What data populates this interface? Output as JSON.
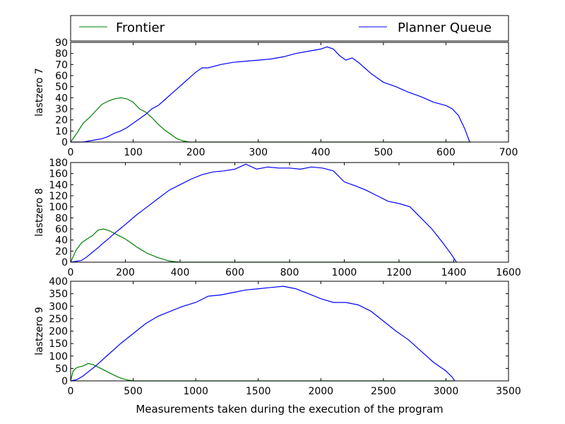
{
  "legend": {
    "items": [
      {
        "name": "Frontier",
        "color": "#008000"
      },
      {
        "name": "Planner Queue",
        "color": "#0000ff"
      }
    ],
    "placement": "top, above charts, spanning width"
  },
  "xlabel": "Measurements taken during the execution of the program",
  "chart_data": [
    {
      "type": "line",
      "ylabel": "lastzero 7",
      "xlim": [
        0,
        700
      ],
      "ylim": [
        0,
        90
      ],
      "xticks": [
        0,
        100,
        200,
        300,
        400,
        500,
        600,
        700
      ],
      "yticks": [
        0,
        10,
        20,
        30,
        40,
        50,
        60,
        70,
        80,
        90
      ],
      "grid": false,
      "series": [
        {
          "name": "Frontier",
          "color": "#008000",
          "x": [
            0,
            10,
            20,
            30,
            40,
            50,
            60,
            70,
            80,
            90,
            100,
            110,
            120,
            130,
            140,
            150,
            160,
            170,
            180,
            190,
            250,
            400,
            640
          ],
          "y": [
            0,
            8,
            17,
            22,
            28,
            34,
            37,
            39,
            40,
            39,
            36,
            30,
            27,
            22,
            16,
            11,
            7,
            3,
            1,
            0,
            0,
            0,
            0
          ]
        },
        {
          "name": "Planner Queue",
          "color": "#0000ff",
          "x": [
            0,
            10,
            20,
            30,
            40,
            50,
            60,
            70,
            80,
            90,
            100,
            110,
            120,
            130,
            140,
            150,
            160,
            170,
            180,
            190,
            200,
            210,
            220,
            240,
            260,
            280,
            300,
            320,
            340,
            360,
            380,
            400,
            410,
            420,
            430,
            440,
            450,
            460,
            470,
            480,
            490,
            500,
            520,
            540,
            560,
            580,
            600,
            610,
            620,
            630,
            638
          ],
          "y": [
            0,
            0,
            0,
            1,
            2,
            3,
            5,
            8,
            10,
            13,
            17,
            21,
            25,
            30,
            33,
            38,
            43,
            48,
            53,
            58,
            63,
            67,
            67,
            70,
            72,
            73,
            74,
            75,
            77,
            80,
            82,
            84,
            86,
            84,
            78,
            74,
            76,
            72,
            67,
            62,
            58,
            54,
            50,
            45,
            41,
            36,
            33,
            30,
            24,
            12,
            0
          ]
        }
      ]
    },
    {
      "type": "line",
      "ylabel": "lastzero 8",
      "xlim": [
        0,
        1600
      ],
      "ylim": [
        0,
        180
      ],
      "xticks": [
        0,
        200,
        400,
        600,
        800,
        1000,
        1200,
        1400,
        1600
      ],
      "yticks": [
        0,
        20,
        40,
        60,
        80,
        100,
        120,
        140,
        160,
        180
      ],
      "grid": false,
      "series": [
        {
          "name": "Frontier",
          "color": "#008000",
          "x": [
            0,
            20,
            40,
            60,
            80,
            100,
            120,
            140,
            160,
            180,
            200,
            220,
            240,
            260,
            280,
            300,
            320,
            340,
            360,
            400,
            600,
            1400
          ],
          "y": [
            0,
            22,
            35,
            42,
            48,
            58,
            60,
            57,
            52,
            47,
            42,
            35,
            28,
            22,
            16,
            12,
            8,
            5,
            2,
            0,
            0,
            0
          ]
        },
        {
          "name": "Planner Queue",
          "color": "#0000ff",
          "x": [
            0,
            40,
            60,
            80,
            100,
            120,
            140,
            160,
            180,
            200,
            240,
            280,
            320,
            360,
            400,
            440,
            480,
            520,
            560,
            600,
            640,
            680,
            720,
            760,
            800,
            840,
            880,
            920,
            960,
            1000,
            1040,
            1080,
            1120,
            1160,
            1200,
            1240,
            1280,
            1320,
            1360,
            1390,
            1410
          ],
          "y": [
            0,
            3,
            10,
            18,
            26,
            35,
            43,
            52,
            60,
            68,
            85,
            100,
            115,
            130,
            140,
            150,
            158,
            163,
            165,
            168,
            177,
            168,
            172,
            170,
            170,
            168,
            172,
            170,
            165,
            145,
            138,
            130,
            120,
            110,
            106,
            100,
            80,
            60,
            35,
            15,
            0
          ]
        }
      ]
    },
    {
      "type": "line",
      "ylabel": "lastzero 9",
      "xlim": [
        0,
        3500
      ],
      "ylim": [
        0,
        400
      ],
      "xticks": [
        0,
        500,
        1000,
        1500,
        2000,
        2500,
        3000,
        3500
      ],
      "yticks": [
        0,
        50,
        100,
        150,
        200,
        250,
        300,
        350,
        400
      ],
      "grid": false,
      "series": [
        {
          "name": "Frontier",
          "color": "#008000",
          "x": [
            0,
            20,
            40,
            60,
            100,
            140,
            180,
            220,
            260,
            300,
            340,
            380,
            420,
            460,
            500,
            800,
            3060
          ],
          "y": [
            0,
            40,
            50,
            55,
            60,
            70,
            65,
            55,
            45,
            35,
            25,
            15,
            8,
            3,
            0,
            0,
            0
          ]
        },
        {
          "name": "Planner Queue",
          "color": "#0000ff",
          "x": [
            0,
            50,
            100,
            200,
            300,
            400,
            500,
            600,
            700,
            800,
            900,
            1000,
            1100,
            1200,
            1300,
            1400,
            1500,
            1600,
            1700,
            1800,
            1900,
            2000,
            2100,
            2200,
            2300,
            2400,
            2500,
            2600,
            2700,
            2800,
            2900,
            3000,
            3050,
            3070
          ],
          "y": [
            0,
            5,
            20,
            60,
            105,
            150,
            190,
            230,
            260,
            280,
            300,
            315,
            340,
            345,
            355,
            365,
            370,
            375,
            380,
            370,
            350,
            330,
            315,
            315,
            305,
            280,
            240,
            200,
            165,
            120,
            75,
            40,
            15,
            0
          ]
        }
      ]
    }
  ]
}
